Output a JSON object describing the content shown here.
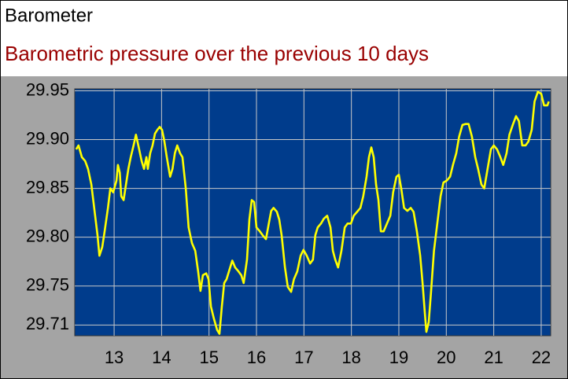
{
  "chart_data": {
    "type": "line",
    "title": "Barometer",
    "subtitle": "Barometric pressure over the previous 10 days",
    "color": "#ffff00",
    "grid": true,
    "xlim": [
      12.17,
      22.2
    ],
    "ylim": [
      29.699,
      29.952
    ],
    "xticks": [
      13,
      14,
      15,
      16,
      17,
      18,
      19,
      20,
      21,
      22
    ],
    "yticks": [
      29.71,
      29.75,
      {
        "value": 29.8,
        "label": "29.80"
      },
      29.85,
      {
        "value": 29.9,
        "label": "29.90"
      },
      29.95
    ],
    "x": [
      12.2,
      12.25,
      12.32,
      12.39,
      12.45,
      12.52,
      12.59,
      12.65,
      12.69,
      12.75,
      12.8,
      12.87,
      12.92,
      12.98,
      13.05,
      13.08,
      13.12,
      13.15,
      13.2,
      13.25,
      13.3,
      13.35,
      13.41,
      13.46,
      13.51,
      13.58,
      13.63,
      13.68,
      13.71,
      13.76,
      13.81,
      13.86,
      13.91,
      13.96,
      14.01,
      14.06,
      14.11,
      14.18,
      14.23,
      14.28,
      14.33,
      14.39,
      14.44,
      14.51,
      14.57,
      14.64,
      14.71,
      14.77,
      14.82,
      14.87,
      14.94,
      14.99,
      15.04,
      15.1,
      15.17,
      15.22,
      15.27,
      15.32,
      15.37,
      15.42,
      15.49,
      15.55,
      15.62,
      15.68,
      15.73,
      15.8,
      15.85,
      15.9,
      15.95,
      16.0,
      16.07,
      16.13,
      16.2,
      16.26,
      16.31,
      16.36,
      16.43,
      16.48,
      16.53,
      16.6,
      16.66,
      16.73,
      16.79,
      16.86,
      16.93,
      16.99,
      17.06,
      17.13,
      17.19,
      17.24,
      17.29,
      17.36,
      17.42,
      17.49,
      17.56,
      17.61,
      17.66,
      17.72,
      17.79,
      17.86,
      17.92,
      17.99,
      18.05,
      18.12,
      18.19,
      18.25,
      18.32,
      18.37,
      18.42,
      18.47,
      18.52,
      18.57,
      18.62,
      18.68,
      18.75,
      18.82,
      18.88,
      18.95,
      19.0,
      19.05,
      19.11,
      19.18,
      19.25,
      19.31,
      19.38,
      19.45,
      19.5,
      19.55,
      19.58,
      19.63,
      19.68,
      19.74,
      19.81,
      19.88,
      19.94,
      20.01,
      20.08,
      20.14,
      20.21,
      20.27,
      20.34,
      20.41,
      20.47,
      20.54,
      20.61,
      20.67,
      20.74,
      20.8,
      20.87,
      20.94,
      21.0,
      21.07,
      21.14,
      21.2,
      21.27,
      21.33,
      21.4,
      21.47,
      21.53,
      21.6,
      21.67,
      21.73,
      21.8,
      21.86,
      21.93,
      22.0,
      22.06,
      22.13,
      22.16
    ],
    "values": [
      29.89,
      29.894,
      29.882,
      29.878,
      29.87,
      29.854,
      29.826,
      29.802,
      29.781,
      29.79,
      29.806,
      29.83,
      29.85,
      29.846,
      29.858,
      29.874,
      29.866,
      29.842,
      29.838,
      29.854,
      29.87,
      29.882,
      29.894,
      29.905,
      29.894,
      29.878,
      29.87,
      29.882,
      29.87,
      29.886,
      29.894,
      29.906,
      29.91,
      29.913,
      29.91,
      29.898,
      29.882,
      29.862,
      29.87,
      29.886,
      29.894,
      29.886,
      29.882,
      29.85,
      29.81,
      29.794,
      29.786,
      29.765,
      29.745,
      29.761,
      29.763,
      29.757,
      29.729,
      29.717,
      29.705,
      29.701,
      29.729,
      29.753,
      29.757,
      29.765,
      29.776,
      29.769,
      29.765,
      29.761,
      29.753,
      29.777,
      29.818,
      29.838,
      29.836,
      29.81,
      29.806,
      29.802,
      29.798,
      29.814,
      29.827,
      29.83,
      29.826,
      29.818,
      29.802,
      29.769,
      29.749,
      29.744,
      29.757,
      29.765,
      29.781,
      29.787,
      29.781,
      29.773,
      29.777,
      29.802,
      29.81,
      29.814,
      29.819,
      29.822,
      29.81,
      29.786,
      29.777,
      29.769,
      29.786,
      29.81,
      29.814,
      29.814,
      29.822,
      29.826,
      29.83,
      29.842,
      29.862,
      29.882,
      29.892,
      29.882,
      29.854,
      29.838,
      29.806,
      29.806,
      29.814,
      29.822,
      29.846,
      29.862,
      29.864,
      29.85,
      29.83,
      29.827,
      29.83,
      29.826,
      29.806,
      29.781,
      29.753,
      29.721,
      29.703,
      29.713,
      29.745,
      29.786,
      29.814,
      29.842,
      29.856,
      29.858,
      29.862,
      29.874,
      29.886,
      29.903,
      29.915,
      29.916,
      29.916,
      29.903,
      29.882,
      29.87,
      29.854,
      29.85,
      29.87,
      29.89,
      29.894,
      29.89,
      29.882,
      29.874,
      29.886,
      29.905,
      29.915,
      29.924,
      29.919,
      29.894,
      29.894,
      29.898,
      29.91,
      29.939,
      29.949,
      29.947,
      29.935,
      29.935,
      29.939
    ]
  }
}
